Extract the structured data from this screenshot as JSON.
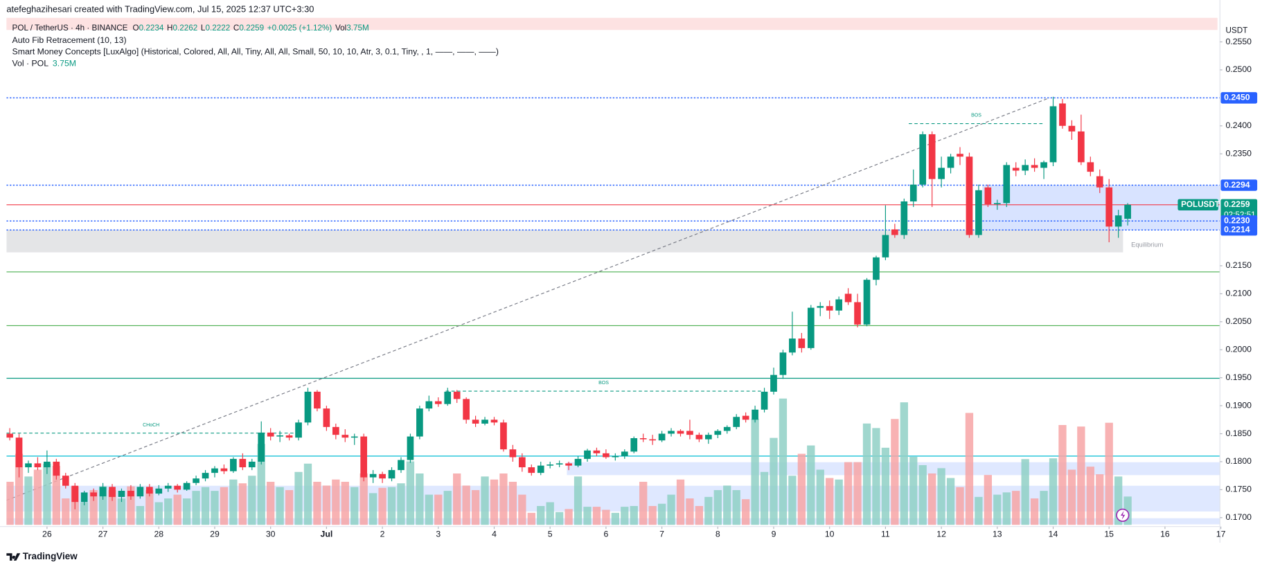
{
  "chart_data": {
    "type": "candlestick",
    "watermark": "atefeghazihesari created with TradingView.com, Jul 15, 2025 12:37 UTC+3:30",
    "symbol": "POL / TetherUS · 4h · BINANCE",
    "ohlc_legend": [
      [
        "O",
        "0.2234"
      ],
      [
        "H",
        "0.2262"
      ],
      [
        "L",
        "0.2222"
      ],
      [
        "C",
        "0.2259"
      ]
    ],
    "change": "+0.0025 (+1.12%)",
    "vol_legend": [
      "Vol",
      "3.75M"
    ],
    "indicators": [
      "Auto Fib Retracement (10, 13)",
      "Smart Money Concepts [LuxAlgo] (Historical, Colored, All, All, Tiny, All, All, Small, 50, 10, 10, Atr, 3, 0.1, Tiny, , 1, ——, ——, ——)"
    ],
    "volume_indicator": [
      "Vol · POL",
      "3.75M"
    ],
    "currency": "USDT",
    "brand": "TradingView",
    "up_color": "#089981",
    "down_color": "#f23645",
    "volume_up_color": "#8fd0c6",
    "volume_down_color": "#f7a4a6",
    "grid": false,
    "xlim": [
      -0.35,
      129.9
    ],
    "ylim": [
      0.1687,
      0.2593
    ],
    "vlim": [
      0,
      67
    ],
    "xticks": [
      {
        "value": 4,
        "label": "26"
      },
      {
        "value": 10,
        "label": "27"
      },
      {
        "value": 16,
        "label": "28"
      },
      {
        "value": 22,
        "label": "29"
      },
      {
        "value": 28,
        "label": "30"
      },
      {
        "value": 34,
        "label": "Jul"
      },
      {
        "value": 40,
        "label": "2"
      },
      {
        "value": 46,
        "label": "3"
      },
      {
        "value": 52,
        "label": "4"
      },
      {
        "value": 58,
        "label": "5"
      },
      {
        "value": 64,
        "label": "6"
      },
      {
        "value": 70,
        "label": "7"
      },
      {
        "value": 76,
        "label": "8"
      },
      {
        "value": 82,
        "label": "9"
      },
      {
        "value": 88,
        "label": "10"
      },
      {
        "value": 94,
        "label": "11"
      },
      {
        "value": 100,
        "label": "12"
      },
      {
        "value": 106,
        "label": "13"
      },
      {
        "value": 112,
        "label": "14"
      },
      {
        "value": 118,
        "label": "15"
      },
      {
        "value": 124,
        "label": "16"
      },
      {
        "value": 130,
        "label": "17"
      }
    ],
    "yticks": [
      {
        "value": 0.17,
        "label": "0.1700"
      },
      {
        "value": 0.175,
        "label": "0.1750"
      },
      {
        "value": 0.18,
        "label": "0.1800"
      },
      {
        "value": 0.185,
        "label": "0.1850"
      },
      {
        "value": 0.19,
        "label": "0.1900"
      },
      {
        "value": 0.195,
        "label": "0.1950"
      },
      {
        "value": 0.2,
        "label": "0.2000"
      },
      {
        "value": 0.205,
        "label": "0.2050"
      },
      {
        "value": 0.21,
        "label": "0.2100"
      },
      {
        "value": 0.215,
        "label": "0.2150"
      },
      {
        "value": 0.235,
        "label": "0.2350"
      },
      {
        "value": 0.24,
        "label": "0.2400"
      },
      {
        "value": 0.25,
        "label": "0.2500"
      },
      {
        "value": 0.255,
        "label": "0.2550"
      }
    ],
    "ohlc": [
      [
        0.185,
        0.186,
        0.1838,
        0.1843
      ],
      [
        0.1843,
        0.185,
        0.1772,
        0.179
      ],
      [
        0.179,
        0.1802,
        0.178,
        0.1797
      ],
      [
        0.1797,
        0.1808,
        0.1785,
        0.179
      ],
      [
        0.179,
        0.182,
        0.1778,
        0.18
      ],
      [
        0.18,
        0.1805,
        0.1768,
        0.1775
      ],
      [
        0.1775,
        0.178,
        0.1752,
        0.1757
      ],
      [
        0.1757,
        0.1762,
        0.1715,
        0.1728
      ],
      [
        0.1728,
        0.1748,
        0.1722,
        0.1745
      ],
      [
        0.1745,
        0.1752,
        0.173,
        0.1738
      ],
      [
        0.1738,
        0.1762,
        0.1732,
        0.1755
      ],
      [
        0.1755,
        0.176,
        0.173,
        0.1737
      ],
      [
        0.1737,
        0.1752,
        0.1728,
        0.1748
      ],
      [
        0.1748,
        0.1758,
        0.1732,
        0.1738
      ],
      [
        0.1738,
        0.176,
        0.1734,
        0.1755
      ],
      [
        0.1755,
        0.176,
        0.1738,
        0.1743
      ],
      [
        0.1743,
        0.1758,
        0.174,
        0.1752
      ],
      [
        0.1752,
        0.1762,
        0.1746,
        0.1757
      ],
      [
        0.1757,
        0.176,
        0.1745,
        0.175
      ],
      [
        0.175,
        0.1765,
        0.1748,
        0.1762
      ],
      [
        0.1762,
        0.1775,
        0.1758,
        0.177
      ],
      [
        0.177,
        0.1785,
        0.1765,
        0.178
      ],
      [
        0.178,
        0.1792,
        0.1772,
        0.1788
      ],
      [
        0.1788,
        0.1795,
        0.1778,
        0.1783
      ],
      [
        0.1783,
        0.1808,
        0.178,
        0.1805
      ],
      [
        0.1805,
        0.1815,
        0.1785,
        0.179
      ],
      [
        0.179,
        0.1805,
        0.1785,
        0.18
      ],
      [
        0.18,
        0.1872,
        0.1795,
        0.1852
      ],
      [
        0.1852,
        0.186,
        0.1838,
        0.1845
      ],
      [
        0.1845,
        0.1855,
        0.1835,
        0.1847
      ],
      [
        0.1847,
        0.185,
        0.1838,
        0.1843
      ],
      [
        0.1843,
        0.1875,
        0.1838,
        0.187
      ],
      [
        0.187,
        0.1932,
        0.1865,
        0.1925
      ],
      [
        0.1925,
        0.1928,
        0.189,
        0.1895
      ],
      [
        0.1895,
        0.19,
        0.1855,
        0.1862
      ],
      [
        0.1862,
        0.1868,
        0.184,
        0.1848
      ],
      [
        0.1848,
        0.1858,
        0.1835,
        0.1843
      ],
      [
        0.1843,
        0.185,
        0.183,
        0.1845
      ],
      [
        0.1845,
        0.185,
        0.1765,
        0.1772
      ],
      [
        0.1772,
        0.1785,
        0.1762,
        0.1778
      ],
      [
        0.1778,
        0.1782,
        0.1762,
        0.177
      ],
      [
        0.177,
        0.179,
        0.1765,
        0.1785
      ],
      [
        0.1785,
        0.1808,
        0.178,
        0.1803
      ],
      [
        0.1803,
        0.185,
        0.1798,
        0.1845
      ],
      [
        0.1845,
        0.19,
        0.184,
        0.1895
      ],
      [
        0.1895,
        0.1918,
        0.189,
        0.1908
      ],
      [
        0.1908,
        0.1915,
        0.1898,
        0.1903
      ],
      [
        0.1903,
        0.1932,
        0.19,
        0.1925
      ],
      [
        0.1925,
        0.1928,
        0.1905,
        0.1912
      ],
      [
        0.1912,
        0.1915,
        0.1868,
        0.1875
      ],
      [
        0.1875,
        0.1882,
        0.1862,
        0.1868
      ],
      [
        0.1868,
        0.188,
        0.1865,
        0.1875
      ],
      [
        0.1875,
        0.188,
        0.1865,
        0.187
      ],
      [
        0.187,
        0.1875,
        0.1818,
        0.1822
      ],
      [
        0.1822,
        0.183,
        0.18,
        0.1808
      ],
      [
        0.1808,
        0.1815,
        0.1782,
        0.179
      ],
      [
        0.179,
        0.1795,
        0.1775,
        0.178
      ],
      [
        0.178,
        0.18,
        0.1776,
        0.1793
      ],
      [
        0.1793,
        0.18,
        0.1788,
        0.1795
      ],
      [
        0.1795,
        0.1802,
        0.179,
        0.1797
      ],
      [
        0.1797,
        0.18,
        0.1785,
        0.1793
      ],
      [
        0.1793,
        0.181,
        0.179,
        0.1805
      ],
      [
        0.1805,
        0.1823,
        0.18,
        0.182
      ],
      [
        0.182,
        0.1825,
        0.181,
        0.1815
      ],
      [
        0.1815,
        0.1822,
        0.1805,
        0.1808
      ],
      [
        0.1808,
        0.1815,
        0.1802,
        0.181
      ],
      [
        0.181,
        0.1822,
        0.1805,
        0.1818
      ],
      [
        0.1818,
        0.1845,
        0.1815,
        0.1842
      ],
      [
        0.1842,
        0.185,
        0.1835,
        0.184
      ],
      [
        0.184,
        0.1848,
        0.183,
        0.1838
      ],
      [
        0.1838,
        0.1855,
        0.1835,
        0.185
      ],
      [
        0.185,
        0.186,
        0.1845,
        0.1855
      ],
      [
        0.1855,
        0.1858,
        0.1845,
        0.185
      ],
      [
        0.1855,
        0.1875,
        0.184,
        0.1848
      ],
      [
        0.1848,
        0.1852,
        0.1835,
        0.184
      ],
      [
        0.184,
        0.1852,
        0.1832,
        0.1848
      ],
      [
        0.1848,
        0.1858,
        0.1842,
        0.1855
      ],
      [
        0.1855,
        0.1865,
        0.185,
        0.1862
      ],
      [
        0.1862,
        0.1885,
        0.1858,
        0.188
      ],
      [
        0.1882,
        0.1888,
        0.187,
        0.1875
      ],
      [
        0.1875,
        0.19,
        0.187,
        0.1893
      ],
      [
        0.1893,
        0.1932,
        0.1888,
        0.1925
      ],
      [
        0.1925,
        0.1968,
        0.192,
        0.1955
      ],
      [
        0.1955,
        0.2,
        0.1948,
        0.1995
      ],
      [
        0.1995,
        0.2068,
        0.199,
        0.202
      ],
      [
        0.202,
        0.203,
        0.1995,
        0.2003
      ],
      [
        0.2003,
        0.208,
        0.2,
        0.2075
      ],
      [
        0.2075,
        0.2085,
        0.206,
        0.2078
      ],
      [
        0.2078,
        0.2088,
        0.2055,
        0.207
      ],
      [
        0.207,
        0.2095,
        0.2062,
        0.209
      ],
      [
        0.21,
        0.211,
        0.208,
        0.2085
      ],
      [
        0.2085,
        0.21,
        0.204,
        0.2045
      ],
      [
        0.2045,
        0.2128,
        0.2042,
        0.2125
      ],
      [
        0.2125,
        0.2168,
        0.2115,
        0.2165
      ],
      [
        0.2165,
        0.2258,
        0.216,
        0.2205
      ],
      [
        0.2215,
        0.2225,
        0.22,
        0.2205
      ],
      [
        0.2205,
        0.227,
        0.2198,
        0.2265
      ],
      [
        0.2265,
        0.2322,
        0.2255,
        0.2295
      ],
      [
        0.2295,
        0.239,
        0.229,
        0.2385
      ],
      [
        0.2385,
        0.239,
        0.2255,
        0.2305
      ],
      [
        0.2305,
        0.2345,
        0.229,
        0.2325
      ],
      [
        0.2325,
        0.235,
        0.2315,
        0.2345
      ],
      [
        0.235,
        0.2362,
        0.233,
        0.2345
      ],
      [
        0.2345,
        0.2352,
        0.22,
        0.2205
      ],
      [
        0.2205,
        0.2295,
        0.22,
        0.2285
      ],
      [
        0.229,
        0.2295,
        0.2255,
        0.226
      ],
      [
        0.226,
        0.2268,
        0.225,
        0.2262
      ],
      [
        0.2262,
        0.2335,
        0.2255,
        0.233
      ],
      [
        0.2325,
        0.2335,
        0.231,
        0.232
      ],
      [
        0.232,
        0.234,
        0.2312,
        0.233
      ],
      [
        0.233,
        0.2342,
        0.2318,
        0.2325
      ],
      [
        0.2325,
        0.2338,
        0.2305,
        0.2335
      ],
      [
        0.2335,
        0.2452,
        0.2328,
        0.2435
      ],
      [
        0.244,
        0.2448,
        0.2395,
        0.24
      ],
      [
        0.24,
        0.241,
        0.2375,
        0.239
      ],
      [
        0.239,
        0.242,
        0.233,
        0.2335
      ],
      [
        0.2335,
        0.2345,
        0.231,
        0.2318
      ],
      [
        0.231,
        0.2322,
        0.228,
        0.229
      ],
      [
        0.229,
        0.2305,
        0.2192,
        0.222
      ],
      [
        0.222,
        0.225,
        0.22,
        0.224
      ],
      [
        0.2234,
        0.2262,
        0.2222,
        0.2259
      ]
    ],
    "volume": [
      5.7,
      9.4,
      6.4,
      7.3,
      8.1,
      7.8,
      3.5,
      5.1,
      3.0,
      4.6,
      5.1,
      4.6,
      3.5,
      5.1,
      2.5,
      4.6,
      3.0,
      3.5,
      4.0,
      3.5,
      4.5,
      5.0,
      4.5,
      5.0,
      6.0,
      5.5,
      6.5,
      10.7,
      5.7,
      5.0,
      4.6,
      7.0,
      8.1,
      5.7,
      5.2,
      6.0,
      5.7,
      5.0,
      6.8,
      4.2,
      4.9,
      5.0,
      5.5,
      8.4,
      6.8,
      4.0,
      4.0,
      4.5,
      6.8,
      5.2,
      4.6,
      6.4,
      6.0,
      6.8,
      5.7,
      4.0,
      1.6,
      2.5,
      3.0,
      1.7,
      2.1,
      6.4,
      2.4,
      2.4,
      2.0,
      1.6,
      2.4,
      2.5,
      5.7,
      2.5,
      2.8,
      4.0,
      6.0,
      3.5,
      2.5,
      3.7,
      4.6,
      5.2,
      4.6,
      3.4,
      14.0,
      7.0,
      11.5,
      16.7,
      6.5,
      9.4,
      10.5,
      7.3,
      6.2,
      6.0,
      8.3,
      8.3,
      13.4,
      12.8,
      10.2,
      14.0,
      16.2,
      9.0,
      7.9,
      6.8,
      7.5,
      6.2,
      5.0,
      14.8,
      3.7,
      6.6,
      4.0,
      4.3,
      4.5,
      8.7,
      3.5,
      4.5,
      8.8,
      13.2,
      7.3,
      13.0,
      7.7,
      6.7,
      13.5,
      6.4,
      3.75
    ],
    "zones": [
      {
        "from": 0.2214,
        "to": 0.2294,
        "start": 104.4,
        "end": 129.9,
        "color": "rgba(41,98,255,0.18)"
      },
      {
        "from": 0.2174,
        "to": 0.2214,
        "start": -0.35,
        "end": 119.5,
        "color": "rgba(120,123,134,0.2)",
        "label": "Equilibrium"
      },
      {
        "from": 0.1776,
        "to": 0.1799,
        "start": 59.8,
        "end": 129.9,
        "color": "rgba(41,98,255,0.15)"
      },
      {
        "from": 0.1711,
        "to": 0.1757,
        "start": -0.35,
        "end": 129.9,
        "color": "rgba(41,98,255,0.15)"
      },
      {
        "from": 0.1688,
        "to": 0.1699,
        "start": -0.35,
        "end": 129.9,
        "color": "rgba(41,98,255,0.15)"
      }
    ],
    "levels": [
      {
        "value": 0.245,
        "label": "0.2450",
        "color": "#2962ff",
        "style": "dotted"
      },
      {
        "value": 0.2294,
        "label": "0.2294",
        "color": "#2962ff",
        "style": "dotted"
      },
      {
        "value": 0.2259,
        "label": "0.2259",
        "color": "#f23645",
        "badge_color": "#089981",
        "style": "solid",
        "name_label": "POLUSDT",
        "countdown": "02:52:51"
      },
      {
        "value": 0.223,
        "label": "0.2230",
        "color": "#2962ff",
        "style": "dotted"
      },
      {
        "value": 0.2214,
        "label": "0.2214",
        "color": "#2962ff",
        "style": "dotted"
      },
      {
        "value": 0.2139,
        "color": "#4caf50",
        "style": "solid"
      },
      {
        "value": 0.2043,
        "color": "#4caf50",
        "style": "solid"
      },
      {
        "value": 0.1949,
        "color": "#089981",
        "style": "solid"
      },
      {
        "value": 0.181,
        "color": "#00bcd4",
        "style": "solid"
      }
    ],
    "structures": [
      {
        "label": "BOS",
        "level": 0.2404,
        "start": 96.5,
        "end": 111,
        "color": "#089981"
      },
      {
        "label": "BOS",
        "level": 0.1926,
        "start": 46.8,
        "end": 80.7,
        "color": "#089981"
      },
      {
        "label": "CHoCH",
        "level": 0.1851,
        "start": -0.35,
        "end": 30.7,
        "color": "#089981"
      }
    ],
    "fib_trend": {
      "start": [
        -0.35,
        0.1731
      ],
      "end": [
        111.6,
        0.245
      ],
      "color": "#787b86"
    }
  }
}
